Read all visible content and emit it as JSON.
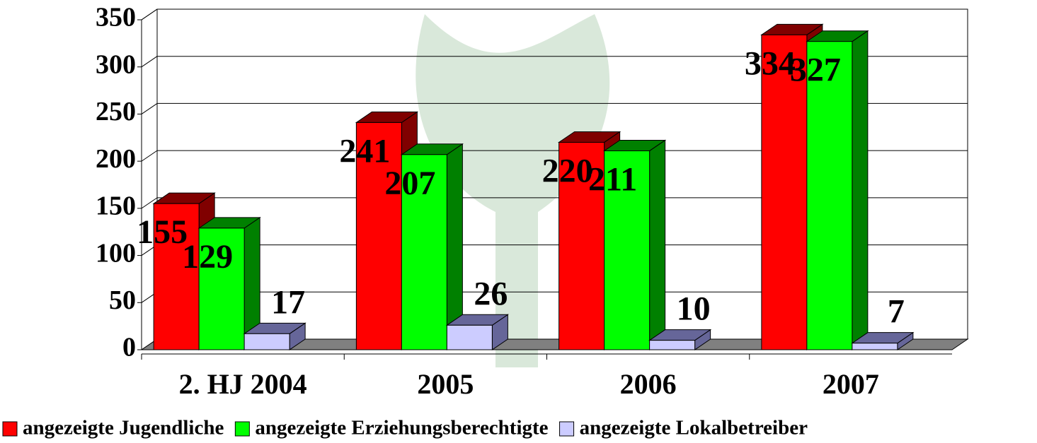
{
  "chart_data": {
    "type": "bar3d",
    "categories": [
      "2. HJ 2004",
      "2005",
      "2006",
      "2007"
    ],
    "series": [
      {
        "name": "angezeigte Jugendliche",
        "color": "#ff0000",
        "side": "#800000",
        "values": [
          155,
          241,
          220,
          334
        ]
      },
      {
        "name": "angezeigte Erziehungsberechtigte",
        "color": "#00ff00",
        "side": "#008000",
        "values": [
          129,
          207,
          211,
          327
        ]
      },
      {
        "name": "angezeigte Lokalbetreiber",
        "color": "#ccccff",
        "side": "#666699",
        "values": [
          17,
          26,
          10,
          7
        ]
      }
    ],
    "ylim": [
      0,
      350
    ],
    "yticks": [
      0,
      50,
      100,
      150,
      200,
      250,
      300,
      350
    ],
    "grid": true,
    "legend": "bottom"
  }
}
